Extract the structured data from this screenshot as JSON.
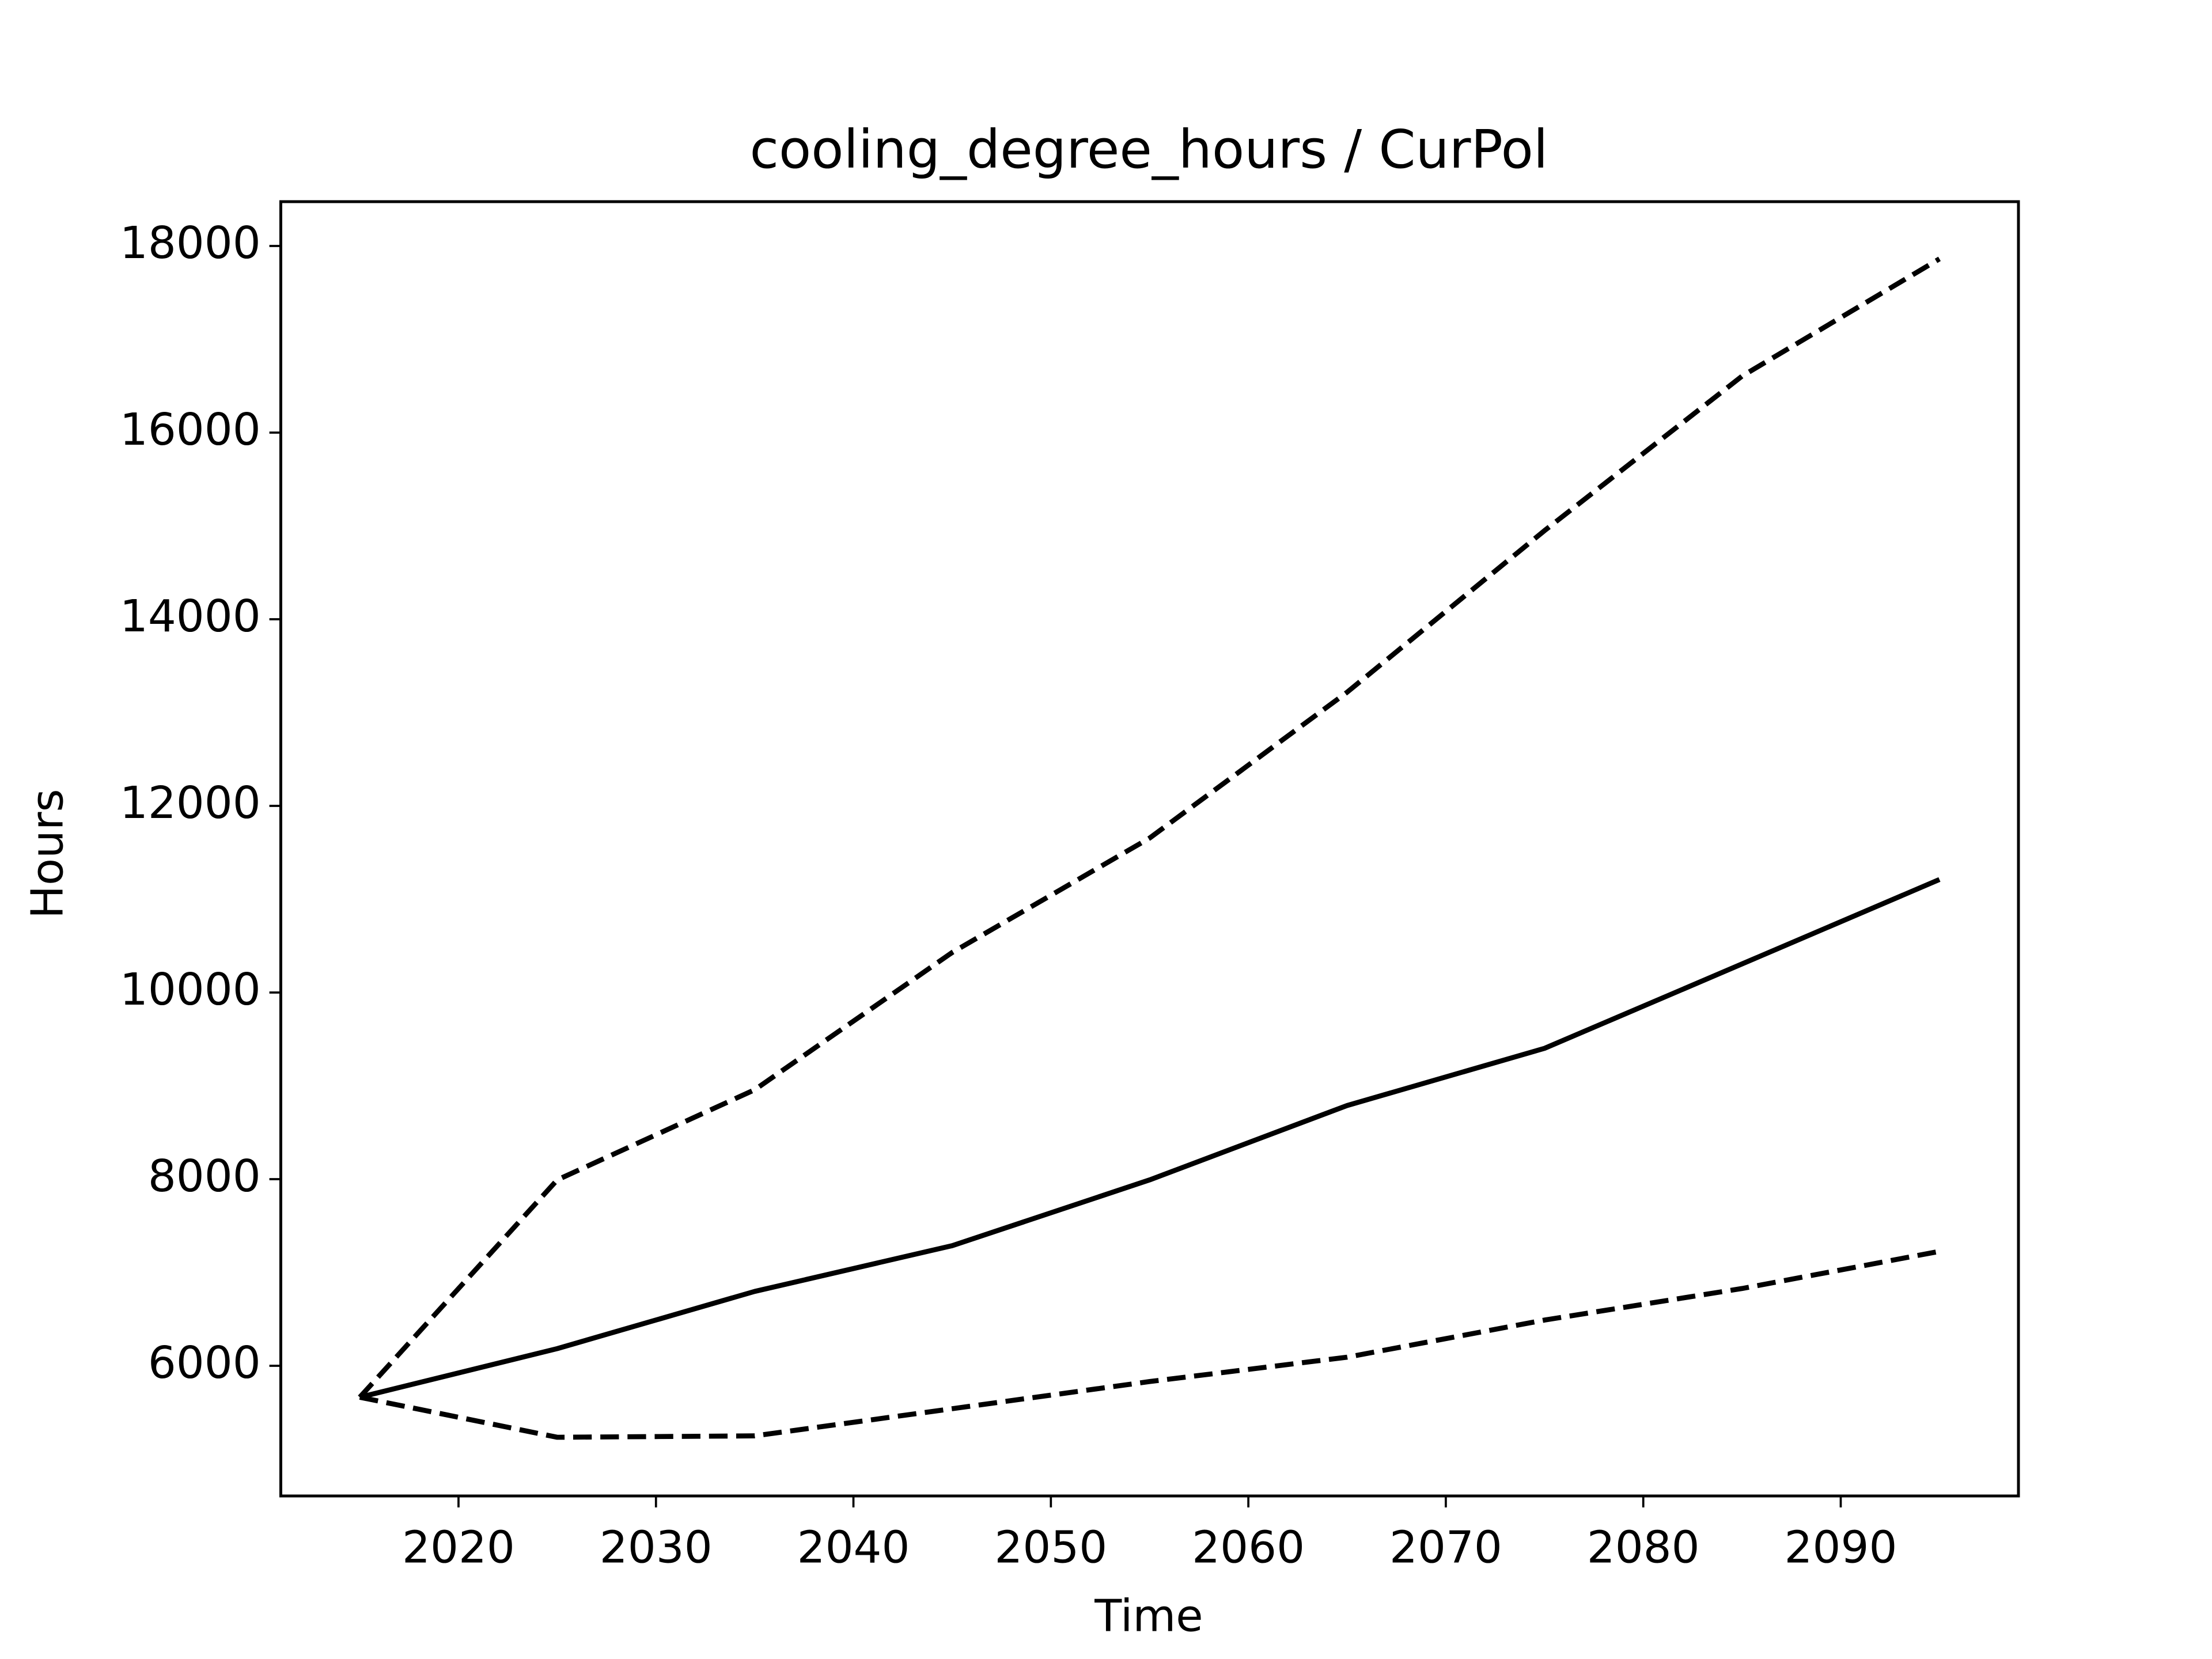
{
  "chart_data": {
    "type": "line",
    "title": "cooling_degree_hours / CurPol",
    "x_label": "Time",
    "y_label": "Hours",
    "x": [
      2015,
      2025,
      2035,
      2045,
      2055,
      2065,
      2075,
      2085,
      2095
    ],
    "series": [
      {
        "color": "#000000",
        "dashed": false,
        "values": [
          5663,
          6184,
          6797,
          7287,
          7992,
          8789,
          9402,
          10306,
          11211
        ]
      },
      {
        "color": "#000000",
        "dashed": true,
        "values": [
          5663,
          7992,
          8958,
          10429,
          11655,
          13218,
          14950,
          16605,
          17862
        ]
      },
      {
        "color": "#000000",
        "dashed": true,
        "values": [
          5663,
          5234,
          5249,
          5540,
          5831,
          6092,
          6490,
          6828,
          7226
        ]
      }
    ],
    "xlim": [
      2011,
      2099
    ],
    "xticks": [
      2020,
      2030,
      2040,
      2050,
      2060,
      2070,
      2080,
      2090
    ],
    "ylim": [
      4605,
      18475
    ],
    "yticks": [
      6000,
      8000,
      10000,
      12000,
      14000,
      16000,
      18000
    ],
    "grid": false
  }
}
